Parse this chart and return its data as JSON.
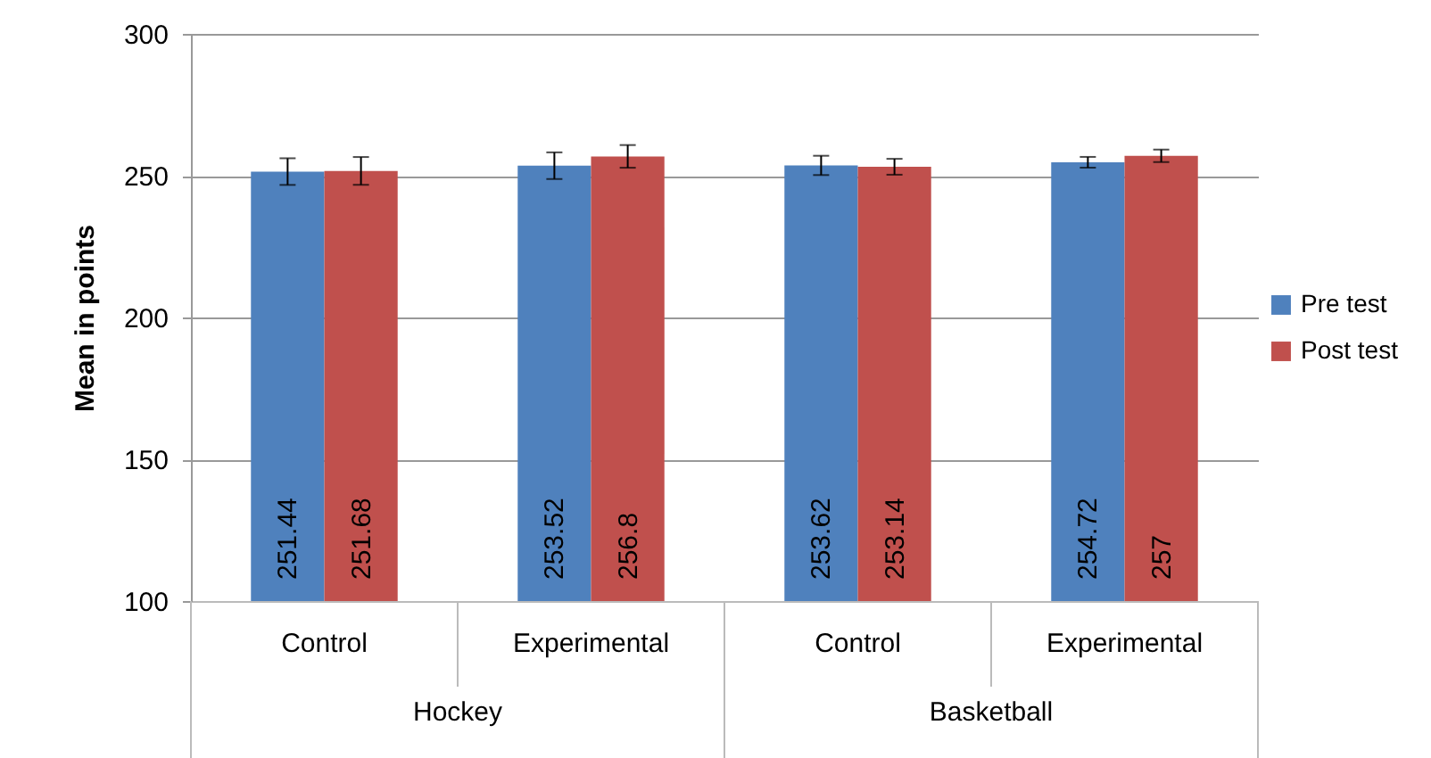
{
  "chart_data": {
    "type": "bar",
    "ylabel": "Mean in points",
    "categories": [
      "Control",
      "Experimental",
      "Control",
      "Experimental"
    ],
    "annotations": [
      "Hockey",
      "Basketball"
    ],
    "series": [
      {
        "name": "Pre test",
        "color": "#4f81bd",
        "values": [
          251.44,
          253.52,
          253.62,
          254.72
        ],
        "errors": [
          4.7,
          4.7,
          3.4,
          1.9
        ]
      },
      {
        "name": "Post test",
        "color": "#c0504d",
        "values": [
          251.68,
          256.8,
          253.14,
          257
        ],
        "errors": [
          4.9,
          4,
          2.8,
          2.2
        ]
      }
    ],
    "ylim": [
      100,
      300
    ],
    "yticks": [
      100,
      150,
      200,
      250,
      300
    ],
    "grid": "y",
    "legend": "right",
    "data_labels": true
  }
}
